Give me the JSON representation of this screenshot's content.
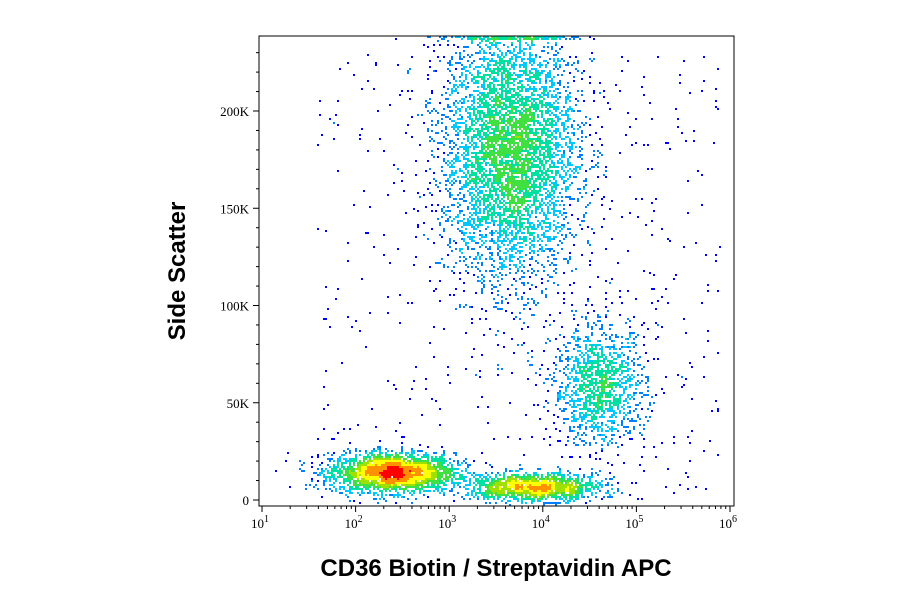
{
  "chart_data": {
    "type": "scatter",
    "title": "",
    "xlabel": "CD36 Biotin / Streptavidin APC",
    "ylabel": "Side Scatter",
    "x_scale": "log",
    "xlim": [
      10,
      1000000
    ],
    "ylim": [
      0,
      240000
    ],
    "x_ticks": [
      {
        "value": 10,
        "base": "10",
        "exp": "1"
      },
      {
        "value": 100,
        "base": "10",
        "exp": "2"
      },
      {
        "value": 1000,
        "base": "10",
        "exp": "3"
      },
      {
        "value": 10000,
        "base": "10",
        "exp": "4"
      },
      {
        "value": 100000,
        "base": "10",
        "exp": "5"
      },
      {
        "value": 1000000,
        "base": "10",
        "exp": "6"
      }
    ],
    "y_ticks": [
      {
        "value": 0,
        "label": "0"
      },
      {
        "value": 50000,
        "label": "50K"
      },
      {
        "value": 100000,
        "label": "100K"
      },
      {
        "value": 150000,
        "label": "150K"
      },
      {
        "value": 200000,
        "label": "200K"
      }
    ],
    "populations": [
      {
        "x_center": 250,
        "y_center": 14000,
        "x_spread_decades": 0.33,
        "y_spread": 5000,
        "count": 2600
      },
      {
        "x_center": 8000,
        "y_center": 6500,
        "x_spread_decades": 0.35,
        "y_spread": 3500,
        "count": 1500
      },
      {
        "x_center": 40000,
        "y_center": 58000,
        "x_spread_decades": 0.25,
        "y_spread": 15000,
        "count": 1300
      },
      {
        "x_center": 4500,
        "y_center": 180000,
        "x_spread_decades": 0.36,
        "y_spread": 34000,
        "count": 5500
      }
    ],
    "colormap": [
      "#0000ff",
      "#0080ff",
      "#00c8ff",
      "#00e0a0",
      "#40e040",
      "#a0e000",
      "#ffff00",
      "#ff9000",
      "#ff0000"
    ]
  }
}
